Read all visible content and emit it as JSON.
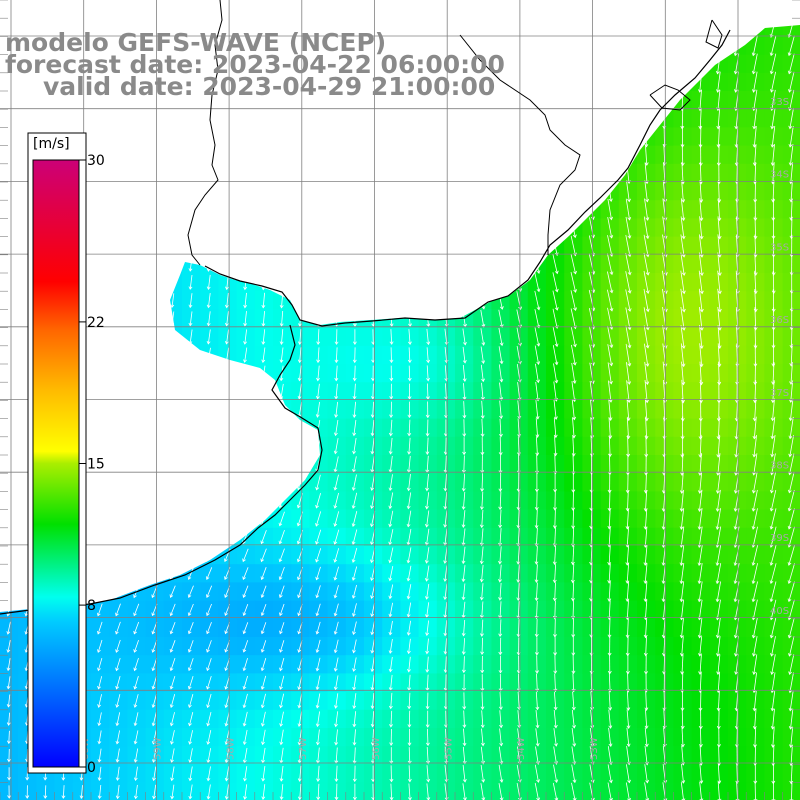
{
  "title": {
    "line1": "modelo GEFS-WAVE (NCEP)",
    "line2": "forecast date: 2023-04-22 06:00:00",
    "line3": "valid date: 2023-04-29 21:00:00"
  },
  "colorbar": {
    "unit": "[m/s]",
    "ticks": [
      {
        "value": 30,
        "label": "30"
      },
      {
        "value": 22,
        "label": "22"
      },
      {
        "value": 15,
        "label": "15"
      },
      {
        "value": 8,
        "label": "8"
      },
      {
        "value": 0,
        "label": "0"
      }
    ],
    "range": [
      0,
      30
    ]
  },
  "lat_labels": [
    "33S",
    "34S",
    "35S",
    "36S",
    "37S",
    "38S",
    "39S",
    "40S"
  ],
  "lon_labels": [
    "60W",
    "59W",
    "58W",
    "57W",
    "56W",
    "55W",
    "54W",
    "53W"
  ],
  "colors": {
    "land": "#ffffff",
    "grid": "#808080",
    "coast": "#000000",
    "arrow": "#ffffff",
    "title": "#8a8a8a"
  },
  "field": {
    "quantity": "wind speed",
    "speed_range_shown": [
      5,
      14
    ],
    "dominant_direction": "southward / south-southwest"
  }
}
